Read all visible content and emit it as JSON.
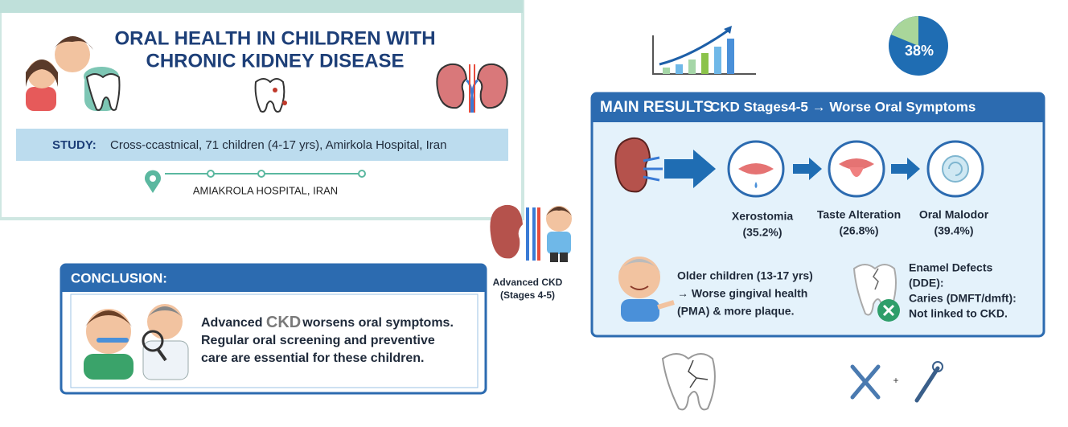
{
  "header": {
    "title_lines": [
      "ORAL HEALTH IN CHILDREN WITH",
      "CHRONIC KIDNEY DISEASE"
    ]
  },
  "study": {
    "label": "STUDY:",
    "text": "Cross-ccastnical, 71 children (4-17 yrs), Amirkola Hospital, Iran",
    "location": "AMIAKROLA HOSPITAL, IRAN"
  },
  "pie_label": "38%",
  "advanced": {
    "lines": [
      "Advanced CKD",
      "(Stages 4-5)"
    ]
  },
  "conclusion": {
    "heading": "CONCLUSION:",
    "lead": "Advanced ",
    "emphasis": "CKD",
    "rest": "worsens oral symptoms.",
    "lines": [
      "Regular oral screening and preventive",
      "care are essential for these children."
    ]
  },
  "results": {
    "heading": "MAIN RESULTS",
    "subheading": "CKD Stages4-5 → Worse Oral Symptoms",
    "symptoms": [
      {
        "name": "Xerostomia",
        "value": "(35.2%)"
      },
      {
        "name": "Taste Alteration",
        "value": "(26.8%)"
      },
      {
        "name": "Oral Malodor",
        "value": "(39.4%)"
      }
    ],
    "older_lines": [
      "Older children (13-17 yrs)",
      "→ Worse gingival health",
      "(PMA) & more plaque."
    ],
    "enamel_lines": [
      "Enamel Defects",
      "(DDE):",
      "Caries (DMFT/dmft):",
      "Not linked to CKD."
    ]
  },
  "tools_plus": "+"
}
